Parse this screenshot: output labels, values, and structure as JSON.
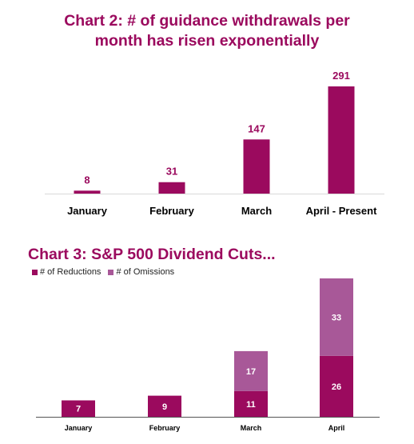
{
  "charts": {
    "chart2": {
      "title_line1": "Chart 2: # of guidance withdrawals per",
      "title_line2": "month has risen exponentially"
    },
    "chart3": {
      "title": "Chart 3: S&P 500 Dividend Cuts...",
      "legend": [
        "# of Reductions",
        "# of Omissions"
      ]
    }
  },
  "colors": {
    "primary": "#9b0a5e",
    "secondary": "#a85898"
  },
  "chart_data": [
    {
      "type": "bar",
      "title": "Chart 2: # of guidance withdrawals per month has risen exponentially",
      "categories": [
        "January",
        "February",
        "March",
        "April - Present"
      ],
      "values": [
        8,
        31,
        147,
        291
      ],
      "xlabel": "",
      "ylabel": "",
      "ylim": [
        0,
        300
      ],
      "grid": false
    },
    {
      "type": "bar",
      "stacked": true,
      "title": "Chart 3: S&P 500 Dividend Cuts...",
      "categories": [
        "January",
        "February",
        "March",
        "April"
      ],
      "series": [
        {
          "name": "# of Reductions",
          "values": [
            7,
            9,
            11,
            26
          ]
        },
        {
          "name": "# of Omissions",
          "values": [
            null,
            null,
            17,
            33
          ]
        }
      ],
      "legend_position": "top-left",
      "xlabel": "",
      "ylabel": "",
      "ylim": [
        0,
        60
      ],
      "grid": false
    }
  ]
}
